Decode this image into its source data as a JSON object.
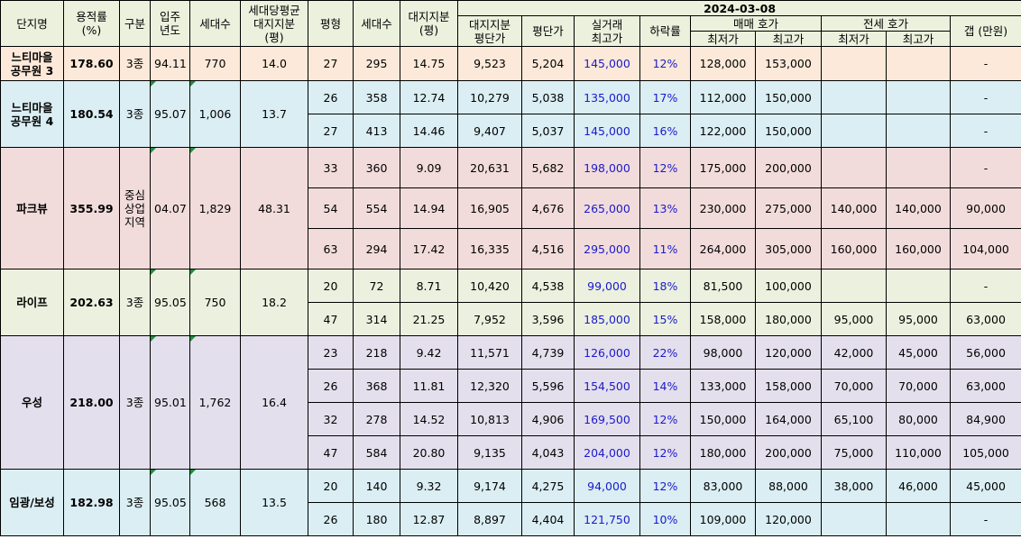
{
  "header": {
    "complex": "단지명",
    "far": "용적률\n(%)",
    "zone": "구분",
    "year": "입주\n년도",
    "households": "세대수",
    "avg_land_share": "세대당평균\n대지지분\n(평)",
    "pyeong": "평형",
    "type_households": "세대수",
    "land_share": "대지지분\n(평)",
    "date": "2024-03-08",
    "land_price_per_pyeong": "대지지분\n평단가",
    "price_per_pyeong": "평단가",
    "peak_trade": "실거래\n최고가",
    "drop_rate": "하락률",
    "sale_ask": "매매 호가",
    "jeonse_ask": "전세 호가",
    "min": "최저가",
    "max": "최고가",
    "gap": "갭 (만원)"
  },
  "rows": [
    {
      "complex": "느티마을\n공무원 3",
      "far": "178.60",
      "zone": "3종",
      "year": "94.11",
      "households": "770",
      "avg_land_share": "14.0",
      "pyeong": "27",
      "type_households": "295",
      "land_share": "14.75",
      "land_price": "9,523",
      "price": "5,204",
      "peak": "145,000",
      "drop": "12%",
      "sale_min": "128,000",
      "sale_max": "153,000",
      "jeonse_min": "",
      "jeonse_max": "",
      "gap": "-"
    },
    {
      "complex": "느티마을\n공무원 4",
      "far": "180.54",
      "zone": "3종",
      "year": "95.07",
      "households": "1,006",
      "avg_land_share": "13.7",
      "pyeong": "26",
      "type_households": "358",
      "land_share": "12.74",
      "land_price": "10,279",
      "price": "5,038",
      "peak": "135,000",
      "drop": "17%",
      "sale_min": "112,000",
      "sale_max": "150,000",
      "jeonse_min": "",
      "jeonse_max": "",
      "gap": "-"
    },
    {
      "pyeong": "27",
      "type_households": "413",
      "land_share": "14.46",
      "land_price": "9,407",
      "price": "5,037",
      "peak": "145,000",
      "drop": "16%",
      "sale_min": "122,000",
      "sale_max": "150,000",
      "jeonse_min": "",
      "jeonse_max": "",
      "gap": "-"
    },
    {
      "complex": "파크뷰",
      "far": "355.99",
      "zone": "중심\n상업\n지역",
      "year": "04.07",
      "households": "1,829",
      "avg_land_share": "48.31",
      "pyeong": "33",
      "type_households": "360",
      "land_share": "9.09",
      "land_price": "20,631",
      "price": "5,682",
      "peak": "198,000",
      "drop": "12%",
      "sale_min": "175,000",
      "sale_max": "200,000",
      "jeonse_min": "",
      "jeonse_max": "",
      "gap": "-"
    },
    {
      "pyeong": "54",
      "type_households": "554",
      "land_share": "14.94",
      "land_price": "16,905",
      "price": "4,676",
      "peak": "265,000",
      "drop": "13%",
      "sale_min": "230,000",
      "sale_max": "275,000",
      "jeonse_min": "140,000",
      "jeonse_max": "140,000",
      "gap": "90,000"
    },
    {
      "pyeong": "63",
      "type_households": "294",
      "land_share": "17.42",
      "land_price": "16,335",
      "price": "4,516",
      "peak": "295,000",
      "drop": "11%",
      "sale_min": "264,000",
      "sale_max": "305,000",
      "jeonse_min": "160,000",
      "jeonse_max": "160,000",
      "gap": "104,000"
    },
    {
      "complex": "라이프",
      "far": "202.63",
      "zone": "3종",
      "year": "95.05",
      "households": "750",
      "avg_land_share": "18.2",
      "pyeong": "20",
      "type_households": "72",
      "land_share": "8.71",
      "land_price": "10,420",
      "price": "4,538",
      "peak": "99,000",
      "drop": "18%",
      "sale_min": "81,500",
      "sale_max": "100,000",
      "jeonse_min": "",
      "jeonse_max": "",
      "gap": "-"
    },
    {
      "pyeong": "47",
      "type_households": "314",
      "land_share": "21.25",
      "land_price": "7,952",
      "price": "3,596",
      "peak": "185,000",
      "drop": "15%",
      "sale_min": "158,000",
      "sale_max": "180,000",
      "jeonse_min": "95,000",
      "jeonse_max": "95,000",
      "gap": "63,000"
    },
    {
      "complex": "우성",
      "far": "218.00",
      "zone": "3종",
      "year": "95.01",
      "households": "1,762",
      "avg_land_share": "16.4",
      "pyeong": "23",
      "type_households": "218",
      "land_share": "9.42",
      "land_price": "11,571",
      "price": "4,739",
      "peak": "126,000",
      "drop": "22%",
      "sale_min": "98,000",
      "sale_max": "120,000",
      "jeonse_min": "42,000",
      "jeonse_max": "45,000",
      "gap": "56,000"
    },
    {
      "pyeong": "26",
      "type_households": "368",
      "land_share": "11.81",
      "land_price": "12,320",
      "price": "5,596",
      "peak": "154,500",
      "drop": "14%",
      "sale_min": "133,000",
      "sale_max": "158,000",
      "jeonse_min": "70,000",
      "jeonse_max": "70,000",
      "gap": "63,000"
    },
    {
      "pyeong": "32",
      "type_households": "278",
      "land_share": "14.52",
      "land_price": "10,813",
      "price": "4,906",
      "peak": "169,500",
      "drop": "12%",
      "sale_min": "150,000",
      "sale_max": "164,000",
      "jeonse_min": "65,100",
      "jeonse_max": "80,000",
      "gap": "84,900"
    },
    {
      "pyeong": "47",
      "type_households": "584",
      "land_share": "20.80",
      "land_price": "9,135",
      "price": "4,043",
      "peak": "204,000",
      "drop": "12%",
      "sale_min": "180,000",
      "sale_max": "200,000",
      "jeonse_min": "75,000",
      "jeonse_max": "110,000",
      "gap": "105,000"
    },
    {
      "complex": "임광/보성",
      "far": "182.98",
      "zone": "3종",
      "year": "95.05",
      "households": "568",
      "avg_land_share": "13.5",
      "pyeong": "20",
      "type_households": "140",
      "land_share": "9.32",
      "land_price": "9,174",
      "price": "4,275",
      "peak": "94,000",
      "drop": "12%",
      "sale_min": "83,000",
      "sale_max": "88,000",
      "jeonse_min": "38,000",
      "jeonse_max": "46,000",
      "gap": "45,000"
    },
    {
      "pyeong": "26",
      "type_households": "180",
      "land_share": "12.87",
      "land_price": "8,897",
      "price": "4,404",
      "peak": "121,750",
      "drop": "10%",
      "sale_min": "109,000",
      "sale_max": "120,000",
      "jeonse_min": "",
      "jeonse_max": "",
      "gap": "-"
    }
  ]
}
